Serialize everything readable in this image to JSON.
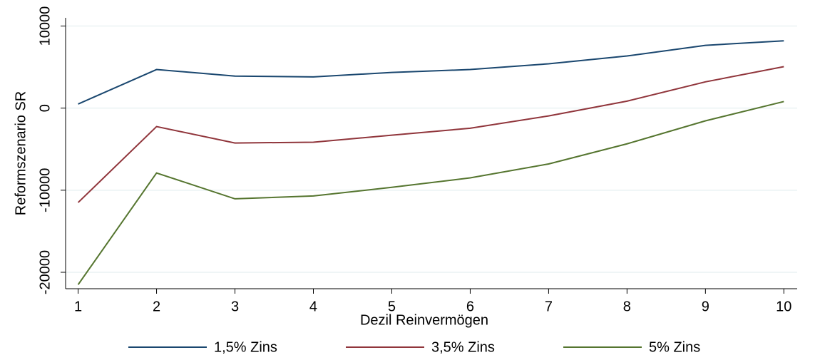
{
  "chart_data": {
    "type": "line",
    "xlabel": "Dezil Reinvermögen",
    "ylabel": "Reformszenario  SR",
    "x": [
      1,
      2,
      3,
      4,
      5,
      6,
      7,
      8,
      9,
      10
    ],
    "series": [
      {
        "name": "1,5% Zins",
        "color": "#1a476f",
        "values": [
          500,
          4700,
          3900,
          3800,
          4350,
          4700,
          5400,
          6350,
          7650,
          8200
        ]
      },
      {
        "name": "3,5% Zins",
        "color": "#90353b",
        "values": [
          -11500,
          -2250,
          -4250,
          -4150,
          -3300,
          -2450,
          -950,
          850,
          3200,
          5050
        ]
      },
      {
        "name": "5% Zins",
        "color": "#55752f",
        "values": [
          -21500,
          -7900,
          -11050,
          -10700,
          -9650,
          -8500,
          -6800,
          -4350,
          -1550,
          800
        ]
      }
    ],
    "xlim": [
      0.84,
      10.17
    ],
    "ylim": [
      -22000,
      11000
    ],
    "xticks": [
      1,
      2,
      3,
      4,
      5,
      6,
      7,
      8,
      9,
      10
    ],
    "yticks": [
      -20000,
      -10000,
      0,
      10000
    ],
    "grid": true,
    "legend": "bottom"
  }
}
